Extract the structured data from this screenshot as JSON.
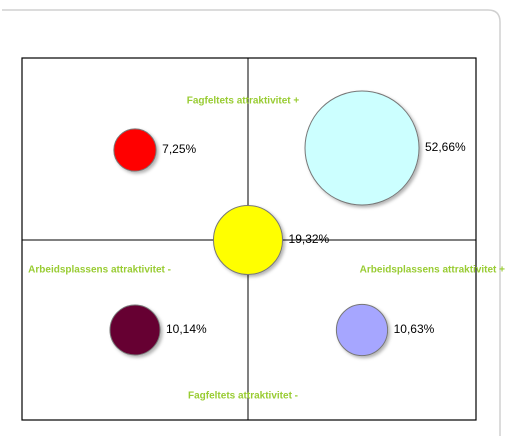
{
  "chart_data": {
    "type": "bubble",
    "values": [
      7.25,
      52.66,
      19.32,
      10.14,
      10.63
    ],
    "value_labels": [
      "7,25%",
      "52,66%",
      "19,32%",
      "10,14%",
      "10,63%"
    ],
    "colors": [
      "#ff0000",
      "#ccffff",
      "#ffff00",
      "#660033",
      "#a6a6ff"
    ],
    "annotations": [
      "Fagfeltets attraktivitet +",
      "Fagfeltets attraktivitet -",
      "Arbeidsplassens attraktivitet -",
      "Arbeidsplassens attraktivitet +"
    ]
  }
}
